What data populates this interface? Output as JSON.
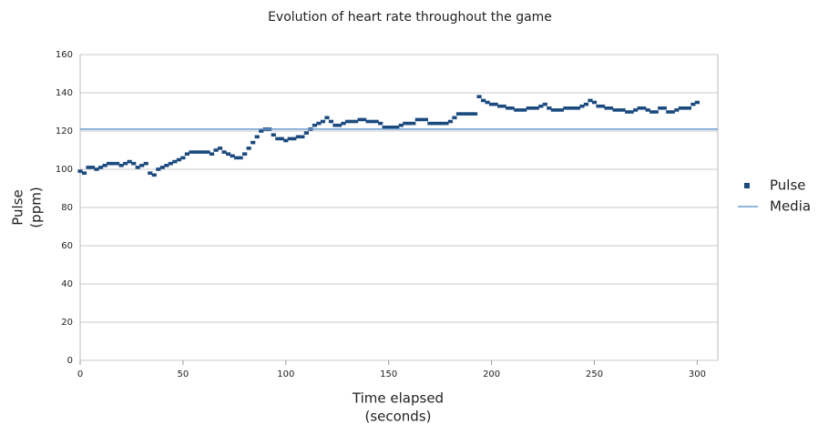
{
  "chart_data": {
    "type": "scatter",
    "title": "Evolution of heart rate throughout the game",
    "x_label": [
      "Time elapsed",
      "(seconds)"
    ],
    "y_label": [
      "Pulse",
      "(ppm)"
    ],
    "xlim": [
      0,
      310
    ],
    "xticks": [
      0,
      50,
      100,
      150,
      200,
      250,
      300
    ],
    "ylim": [
      0,
      160
    ],
    "yticks": [
      0,
      20,
      40,
      60,
      80,
      100,
      120,
      140,
      160
    ],
    "grid": true,
    "legend": "right",
    "series": [
      {
        "name": "Pulse",
        "color": "#1b4a7e",
        "x": [
          0,
          2,
          4,
          6,
          8,
          10,
          12,
          14,
          16,
          18,
          20,
          22,
          24,
          26,
          28,
          30,
          32,
          34,
          36,
          38,
          40,
          42,
          44,
          46,
          48,
          50,
          52,
          54,
          56,
          58,
          60,
          62,
          64,
          66,
          68,
          70,
          72,
          74,
          76,
          78,
          80,
          82,
          84,
          86,
          88,
          90,
          92,
          94,
          96,
          98,
          100,
          102,
          104,
          106,
          108,
          110,
          112,
          114,
          116,
          118,
          120,
          122,
          124,
          126,
          128,
          130,
          132,
          134,
          136,
          138,
          140,
          142,
          144,
          146,
          148,
          150,
          152,
          154,
          156,
          158,
          160,
          162,
          164,
          166,
          168,
          170,
          172,
          174,
          176,
          178,
          180,
          182,
          184,
          186,
          188,
          190,
          192,
          194,
          196,
          198,
          200,
          202,
          204,
          206,
          208,
          210,
          212,
          214,
          216,
          218,
          220,
          222,
          224,
          226,
          228,
          230,
          232,
          234,
          236,
          238,
          240,
          242,
          244,
          246,
          248,
          250,
          252,
          254,
          256,
          258,
          260,
          262,
          264,
          266,
          268,
          270,
          272,
          274,
          276,
          278,
          280,
          282,
          284,
          286,
          288,
          290,
          292,
          294,
          296,
          298,
          300
        ],
        "values": [
          99,
          98,
          101,
          101,
          100,
          101,
          102,
          103,
          103,
          103,
          102,
          103,
          104,
          103,
          101,
          102,
          103,
          98,
          97,
          100,
          101,
          102,
          103,
          104,
          105,
          106,
          108,
          109,
          109,
          109,
          109,
          109,
          108,
          110,
          111,
          109,
          108,
          107,
          106,
          106,
          108,
          111,
          114,
          117,
          120,
          121,
          121,
          118,
          116,
          116,
          115,
          116,
          116,
          117,
          117,
          119,
          121,
          123,
          124,
          125,
          127,
          125,
          123,
          123,
          124,
          125,
          125,
          125,
          126,
          126,
          125,
          125,
          125,
          124,
          122,
          122,
          122,
          122,
          123,
          124,
          124,
          124,
          126,
          126,
          126,
          124,
          124,
          124,
          124,
          124,
          125,
          127,
          129,
          129,
          129,
          129,
          129,
          138,
          136,
          135,
          134,
          134,
          133,
          133,
          132,
          132,
          131,
          131,
          131,
          132,
          132,
          132,
          133,
          134,
          132,
          131,
          131,
          131,
          132,
          132,
          132,
          132,
          133,
          134,
          136,
          135,
          133,
          133,
          132,
          132,
          131,
          131,
          131,
          130,
          130,
          131,
          132,
          132,
          131,
          130,
          130,
          132,
          132,
          130,
          130,
          131,
          132,
          132,
          132,
          134,
          135
        ]
      },
      {
        "name": "Media",
        "color": "#6a9bd1",
        "value": 121
      }
    ]
  }
}
